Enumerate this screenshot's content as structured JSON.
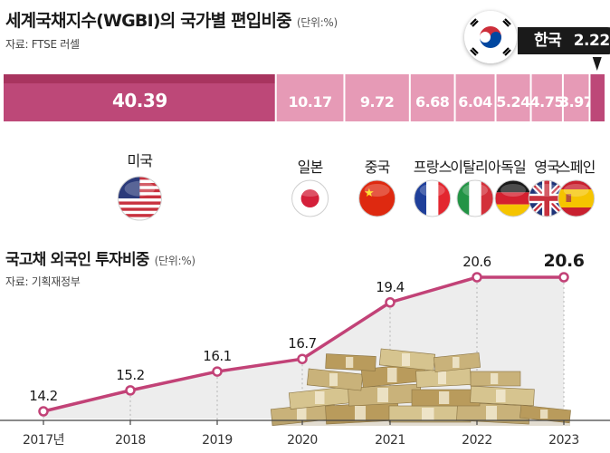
{
  "title": "세계국채지수(WGBI)의 국가별 편입비중",
  "unit": "(단위:%)",
  "source": "자료: FTSE 러셀",
  "korea": {
    "label": "한국",
    "value": "2.22"
  },
  "wgbi": [
    {
      "country": "미국",
      "value": "40.39",
      "flag": "us-flag-icon"
    },
    {
      "country": "일본",
      "value": "10.17",
      "flag": "japan-flag-icon"
    },
    {
      "country": "중국",
      "value": "9.72",
      "flag": "china-flag-icon"
    },
    {
      "country": "프랑스",
      "value": "6.68",
      "flag": "france-flag-icon"
    },
    {
      "country": "이탈리아",
      "value": "6.04",
      "flag": "italy-flag-icon"
    },
    {
      "country": "독일",
      "value": "5.24",
      "flag": "germany-flag-icon"
    },
    {
      "country": "영국",
      "value": "4.75",
      "flag": "uk-flag-icon"
    },
    {
      "country": "스페인",
      "value": "3.97",
      "flag": "spain-flag-icon"
    }
  ],
  "line_title": "국고채 외국인 투자비중",
  "line_unit": "(단위:%)",
  "line_source": "자료: 기획재정부",
  "colors": {
    "accent": "#c5447a",
    "bar_light": "#e69ab6",
    "bar_dark": "#bd4878",
    "line": "#c24277"
  },
  "chart_data": [
    {
      "type": "bar",
      "title": "세계국채지수(WGBI)의 국가별 편입비중",
      "categories": [
        "미국",
        "일본",
        "중국",
        "프랑스",
        "이탈리아",
        "독일",
        "영국",
        "스페인",
        "한국"
      ],
      "values": [
        40.39,
        10.17,
        9.72,
        6.68,
        6.04,
        5.24,
        4.75,
        3.97,
        2.22
      ],
      "ylabel": "(단위:%)"
    },
    {
      "type": "line",
      "title": "국고채 외국인 투자비중",
      "x": [
        "2017년",
        "2018",
        "2019",
        "2020",
        "2021",
        "2022",
        "2023"
      ],
      "y": [
        14.2,
        15.2,
        16.1,
        16.7,
        19.4,
        20.6,
        20.6
      ],
      "ylabel": "(단위:%)"
    }
  ]
}
